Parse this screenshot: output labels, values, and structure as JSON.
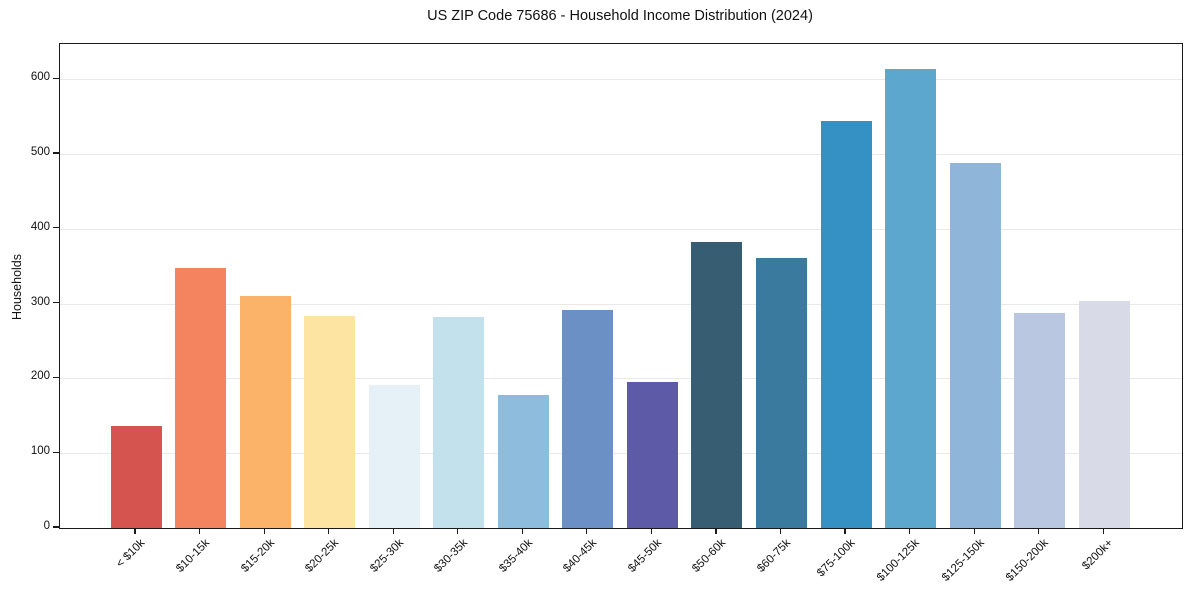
{
  "title": "US ZIP Code 75686 - Household Income Distribution (2024)",
  "chart_data": {
    "type": "bar",
    "title": "US ZIP Code 75686 - Household Income Distribution (2024)",
    "xlabel": "",
    "ylabel": "Households",
    "categories": [
      "< $10k",
      "$10-15k",
      "$15-20k",
      "$20-25k",
      "$25-30k",
      "$30-35k",
      "$35-40k",
      "$40-45k",
      "$45-50k",
      "$50-60k",
      "$60-75k",
      "$75-100k",
      "$100-125k",
      "$125-150k",
      "$150-200k",
      "$200k+"
    ],
    "values": [
      136,
      347,
      310,
      283,
      191,
      282,
      178,
      292,
      195,
      383,
      361,
      544,
      613,
      488,
      287,
      304
    ],
    "bar_colors": [
      "#d6544f",
      "#f3845f",
      "#fab368",
      "#fde4a3",
      "#e5f1f6",
      "#c3e1ed",
      "#8dbcdc",
      "#6b90c5",
      "#5d5aa8",
      "#365d72",
      "#3a7a9e",
      "#3590c4",
      "#5ca7cd",
      "#8fb6d9",
      "#b9c8e0",
      "#d8dae8"
    ],
    "yticks": [
      0,
      100,
      200,
      300,
      400,
      500,
      600
    ],
    "ylim": [
      0,
      647
    ],
    "grid": "horizontal",
    "gridline_color": "#e9e9e9",
    "legend": "none",
    "background_color": "#ffffff"
  }
}
